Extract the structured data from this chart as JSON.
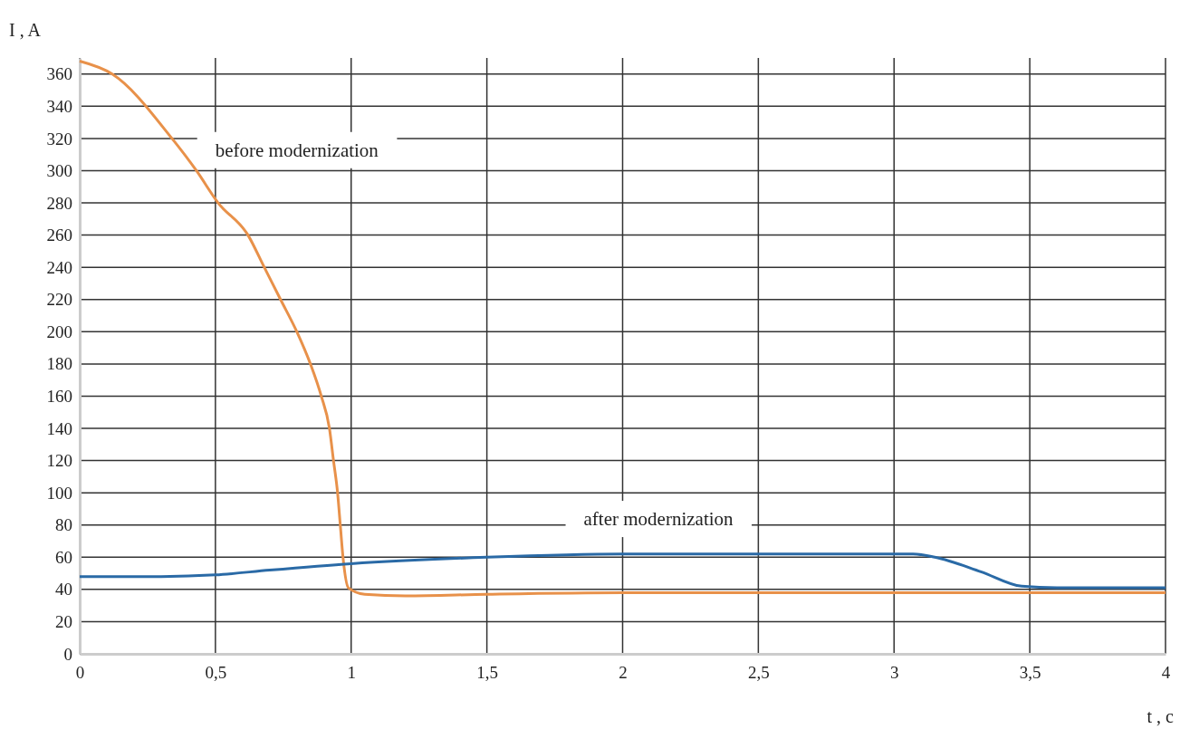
{
  "chart_data": {
    "type": "line",
    "xlabel": "t , c",
    "ylabel": "I , A",
    "xlim": [
      0,
      4
    ],
    "ylim": [
      0,
      370
    ],
    "xticks": [
      0,
      {
        "value": 0.5,
        "label": "0,5"
      },
      1,
      {
        "value": 1.5,
        "label": "1,5"
      },
      2,
      {
        "value": 2.5,
        "label": "2,5"
      },
      3,
      {
        "value": 3.5,
        "label": "3,5"
      },
      4
    ],
    "yticks": [
      0,
      20,
      40,
      60,
      80,
      100,
      120,
      140,
      160,
      180,
      200,
      220,
      240,
      260,
      280,
      300,
      320,
      340,
      360
    ],
    "grid": true,
    "legend": false,
    "marker": "none",
    "line_style": "solid",
    "series": [
      {
        "name": "before modernization",
        "color": "#e8914a",
        "x": [
          0,
          0.12,
          0.34,
          0.43,
          0.51,
          0.62,
          0.68,
          0.74,
          0.8,
          0.85,
          0.89,
          0.92,
          0.935,
          0.95,
          0.96,
          0.97,
          0.99,
          1.05,
          1.2,
          1.5,
          2,
          3,
          4
        ],
        "values": [
          368,
          360,
          320,
          300,
          280,
          260,
          240,
          220,
          200,
          180,
          160,
          140,
          120,
          100,
          80,
          60,
          41,
          37,
          36,
          37,
          38,
          38,
          38
        ]
      },
      {
        "name": "after modernization",
        "color": "#2a6aa6",
        "x": [
          0,
          0.3,
          0.5,
          0.7,
          1,
          1.5,
          2,
          2.5,
          3,
          3.07,
          3.15,
          3.32,
          3.47,
          3.6,
          4
        ],
        "values": [
          48,
          48,
          49,
          52,
          56,
          60,
          62,
          62,
          62,
          62,
          60,
          51,
          42,
          41,
          41
        ]
      }
    ]
  }
}
